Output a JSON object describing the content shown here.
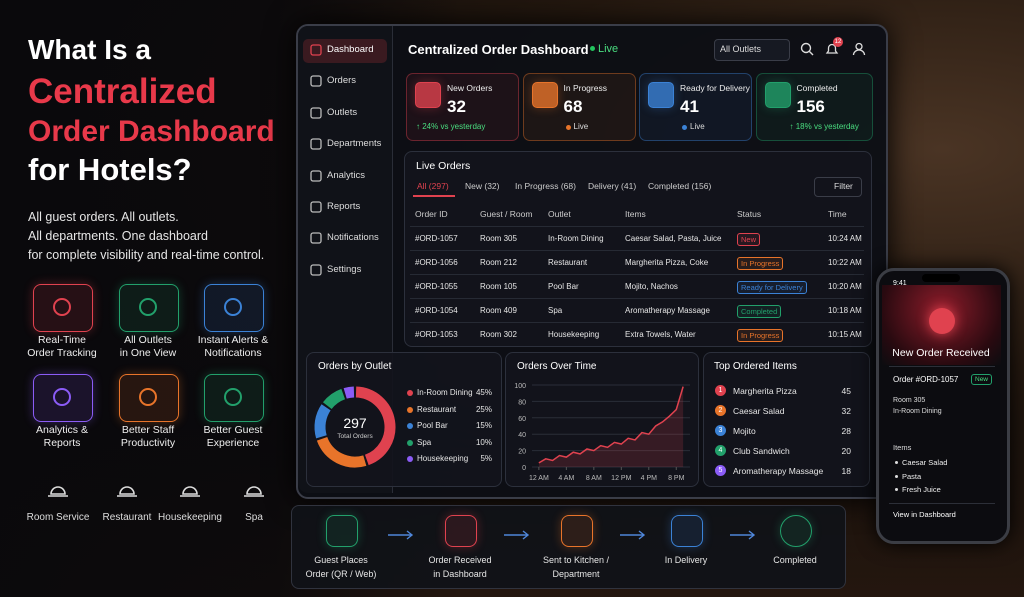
{
  "hero": {
    "title_lines": [
      "What Is a",
      "Centralized",
      "Order Dashboard",
      "for Hotels?"
    ],
    "subtitle_lines": [
      "All guest orders. All outlets.",
      "All departments. One dashboard",
      "for complete visibility and real-time control."
    ]
  },
  "features": [
    {
      "label_lines": [
        "Real-Time",
        "Order Tracking"
      ]
    },
    {
      "label_lines": [
        "All Outlets",
        "in One View"
      ]
    },
    {
      "label_lines": [
        "Instant Alerts &",
        "Notifications"
      ]
    },
    {
      "label_lines": [
        "Analytics &",
        "Reports"
      ]
    },
    {
      "label_lines": [
        "Better Staff",
        "Productivity"
      ]
    },
    {
      "label_lines": [
        "Better Guest",
        "Experience"
      ]
    }
  ],
  "services": [
    "Room Service",
    "Restaurant",
    "Housekeeping",
    "Spa"
  ],
  "sidebar": [
    "Dashboard",
    "Orders",
    "Outlets",
    "Departments",
    "Analytics",
    "Reports",
    "Notifications",
    "Settings"
  ],
  "header": {
    "title": "Centralized Order Dashboard",
    "status": "Live",
    "outlet_select": "All Outlets",
    "notification_count": 12
  },
  "kpis": [
    {
      "label": "New Orders",
      "value": 32,
      "note": "↑ 24% vs yesterday"
    },
    {
      "label": "In Progress",
      "value": 68,
      "note": "Live"
    },
    {
      "label": "Ready for Delivery",
      "value": 41,
      "note": "Live"
    },
    {
      "label": "Completed",
      "value": 156,
      "note": "↑ 18% vs yesterday"
    }
  ],
  "live_orders": {
    "title": "Live Orders",
    "tabs": [
      "All (297)",
      "New (32)",
      "In Progress (68)",
      "Delivery (41)",
      "Completed (156)"
    ],
    "filter": "Filter",
    "columns": [
      "Order ID",
      "Guest / Room",
      "Outlet",
      "Items",
      "Status",
      "Time"
    ],
    "rows": [
      [
        "#ORD-1057",
        "Room 305",
        "In-Room Dining",
        "Caesar Salad, Pasta, Juice",
        "New",
        "10:24 AM"
      ],
      [
        "#ORD-1056",
        "Room 212",
        "Restaurant",
        "Margherita Pizza, Coke",
        "In Progress",
        "10:22 AM"
      ],
      [
        "#ORD-1055",
        "Room 105",
        "Pool Bar",
        "Mojito, Nachos",
        "Ready for Delivery",
        "10:20 AM"
      ],
      [
        "#ORD-1054",
        "Room 409",
        "Spa",
        "Aromatherapy Massage",
        "Completed",
        "10:18 AM"
      ],
      [
        "#ORD-1053",
        "Room 302",
        "Housekeeping",
        "Extra Towels, Water",
        "In Progress",
        "10:15 AM"
      ]
    ]
  },
  "orders_by_outlet": {
    "type": "pie",
    "title": "Orders by Outlet",
    "center_value": 297,
    "center_label": "Total Orders",
    "categories": [
      "In-Room Dining",
      "Restaurant",
      "Pool Bar",
      "Spa",
      "Housekeeping"
    ],
    "values": [
      45,
      25,
      15,
      10,
      5
    ],
    "value_labels": [
      "45%",
      "25%",
      "15%",
      "10%",
      "5%"
    ],
    "colors": [
      "#e0424f",
      "#e8742a",
      "#3b82d6",
      "#22a06b",
      "#8b5cf6"
    ]
  },
  "orders_over_time": {
    "type": "line",
    "title": "Orders Over Time",
    "color": "#e0424f",
    "x": [
      0,
      1,
      2,
      3,
      4,
      5,
      6,
      7,
      8,
      9,
      10,
      11,
      12,
      13,
      14,
      15,
      16,
      17,
      18,
      19,
      20,
      21
    ],
    "values": [
      5,
      10,
      8,
      14,
      12,
      18,
      16,
      22,
      20,
      26,
      24,
      30,
      28,
      35,
      33,
      42,
      40,
      50,
      55,
      62,
      70,
      98
    ],
    "xlim": [
      -1,
      22
    ],
    "ylim": [
      0,
      100
    ],
    "xticks": [
      {
        "value": 0,
        "label": "12 AM"
      },
      {
        "value": 4,
        "label": "4 AM"
      },
      {
        "value": 8,
        "label": "8 AM"
      },
      {
        "value": 12,
        "label": "12 PM"
      },
      {
        "value": 16,
        "label": "4 PM"
      },
      {
        "value": 20,
        "label": "8 PM"
      }
    ],
    "yticks": [
      0,
      20,
      40,
      60,
      80,
      100
    ]
  },
  "top_items": {
    "title": "Top Ordered Items",
    "items": [
      {
        "rank": 1,
        "name": "Margherita Pizza",
        "count": 45
      },
      {
        "rank": 2,
        "name": "Caesar Salad",
        "count": 32
      },
      {
        "rank": 3,
        "name": "Mojito",
        "count": 28
      },
      {
        "rank": 4,
        "name": "Club Sandwich",
        "count": 20
      },
      {
        "rank": 5,
        "name": "Aromatherapy Massage",
        "count": 18
      }
    ]
  },
  "phone": {
    "time": "9:41",
    "title": "New Order Received",
    "order": "Order #ORD-1057",
    "badge": "New",
    "room": "Room 305",
    "location": "In-Room Dining",
    "items_title": "Items",
    "items": [
      "Caesar Salad",
      "Pasta",
      "Fresh Juice"
    ],
    "link": "View in Dashboard"
  },
  "flow": [
    {
      "label_lines": [
        "Guest Places",
        "Order (QR / Web)"
      ]
    },
    {
      "label_lines": [
        "Order Received",
        "in Dashboard"
      ]
    },
    {
      "label_lines": [
        "Sent to Kitchen /",
        "Department"
      ]
    },
    {
      "label_lines": [
        "In Delivery"
      ]
    },
    {
      "label_lines": [
        "Completed"
      ]
    }
  ]
}
